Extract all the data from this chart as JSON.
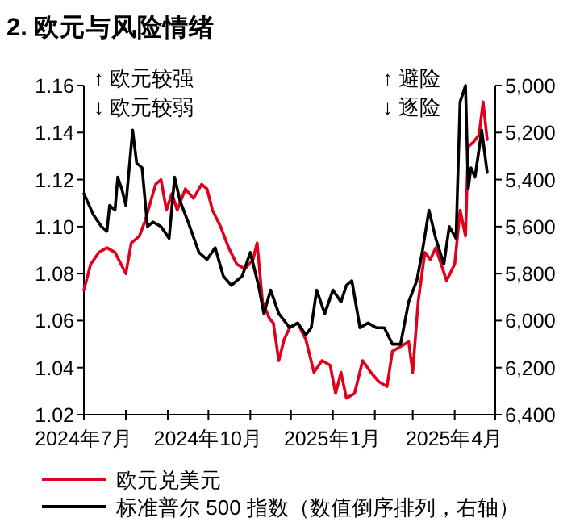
{
  "chart_data": {
    "type": "line",
    "title": "2. 欧元与风险情绪",
    "xlim": [
      "2024-07-01",
      "2025-05-01"
    ],
    "xticks": [
      {
        "value": "2024-07-01",
        "label": "2024年7月"
      },
      {
        "value": "2024-08-01",
        "label": null
      },
      {
        "value": "2024-09-01",
        "label": null
      },
      {
        "value": "2024-10-01",
        "label": "2024年10月"
      },
      {
        "value": "2024-11-01",
        "label": null
      },
      {
        "value": "2024-12-01",
        "label": null
      },
      {
        "value": "2025-01-01",
        "label": "2025年1月"
      },
      {
        "value": "2025-02-01",
        "label": null
      },
      {
        "value": "2025-03-01",
        "label": null
      },
      {
        "value": "2025-04-01",
        "label": "2025年4月"
      },
      {
        "value": "2025-05-01",
        "label": null
      }
    ],
    "ylim": [
      1.02,
      1.16
    ],
    "yticks": [
      {
        "value": 1.02,
        "label": "1.02"
      },
      {
        "value": 1.04,
        "label": "1.04"
      },
      {
        "value": 1.06,
        "label": "1.06"
      },
      {
        "value": 1.08,
        "label": "1.08"
      },
      {
        "value": 1.1,
        "label": "1.10"
      },
      {
        "value": 1.12,
        "label": "1.12"
      },
      {
        "value": 1.14,
        "label": "1.14"
      },
      {
        "value": 1.16,
        "label": "1.16"
      }
    ],
    "y2lim": [
      6400,
      5000
    ],
    "y2ticks": [
      {
        "value": 5000,
        "label": "5,000"
      },
      {
        "value": 5200,
        "label": "5,200"
      },
      {
        "value": 5400,
        "label": "5,400"
      },
      {
        "value": 5600,
        "label": "5,600"
      },
      {
        "value": 5800,
        "label": "5,800"
      },
      {
        "value": 6000,
        "label": "6,000"
      },
      {
        "value": 6200,
        "label": "6,200"
      },
      {
        "value": 6400,
        "label": "6,400"
      }
    ],
    "legend": "bottom",
    "annotations": [
      "↑ 欧元较强",
      "↓ 欧元较弱",
      "↑ 避险",
      "↓ 逐险"
    ],
    "series": [
      {
        "name": "欧元兑美元",
        "color": "#e0001b",
        "x": [
          "2024-07-01",
          "2024-07-06",
          "2024-07-12",
          "2024-07-18",
          "2024-07-24",
          "2024-08-01",
          "2024-08-05",
          "2024-08-11",
          "2024-08-15",
          "2024-08-23",
          "2024-08-27",
          "2024-08-31",
          "2024-09-04",
          "2024-09-08",
          "2024-09-14",
          "2024-09-20",
          "2024-09-26",
          "2024-09-30",
          "2024-10-04",
          "2024-10-10",
          "2024-10-16",
          "2024-10-22",
          "2024-10-28",
          "2024-11-03",
          "2024-11-06",
          "2024-11-10",
          "2024-11-15",
          "2024-11-18",
          "2024-11-22",
          "2024-11-26",
          "2024-11-30",
          "2024-12-06",
          "2024-12-12",
          "2024-12-18",
          "2024-12-24",
          "2024-12-30",
          "2025-01-03",
          "2025-01-07",
          "2025-01-11",
          "2025-01-17",
          "2025-01-23",
          "2025-01-29",
          "2025-02-04",
          "2025-02-10",
          "2025-02-14",
          "2025-02-20",
          "2025-02-26",
          "2025-03-01",
          "2025-03-05",
          "2025-03-10",
          "2025-03-14",
          "2025-03-18",
          "2025-03-22",
          "2025-03-26",
          "2025-04-01",
          "2025-04-05",
          "2025-04-09",
          "2025-04-11",
          "2025-04-15",
          "2025-04-19",
          "2025-04-22",
          "2025-04-25"
        ],
        "values": [
          1.073,
          1.084,
          1.089,
          1.091,
          1.089,
          1.08,
          1.093,
          1.096,
          1.102,
          1.118,
          1.12,
          1.107,
          1.114,
          1.107,
          1.116,
          1.112,
          1.118,
          1.116,
          1.107,
          1.1,
          1.091,
          1.084,
          1.082,
          1.086,
          1.093,
          1.068,
          1.061,
          1.059,
          1.043,
          1.052,
          1.057,
          1.059,
          1.052,
          1.038,
          1.043,
          1.041,
          1.029,
          1.038,
          1.027,
          1.029,
          1.043,
          1.038,
          1.034,
          1.032,
          1.047,
          1.049,
          1.051,
          1.038,
          1.068,
          1.089,
          1.086,
          1.091,
          1.084,
          1.077,
          1.084,
          1.107,
          1.096,
          1.134,
          1.136,
          1.139,
          1.153,
          1.137
        ]
      },
      {
        "name": "标准普尔 500 指数（数值倒序排列，右轴）",
        "color": "#000000",
        "axis": "y2",
        "x": [
          "2024-07-01",
          "2024-07-08",
          "2024-07-14",
          "2024-07-18",
          "2024-07-20",
          "2024-07-24",
          "2024-07-26",
          "2024-07-29",
          "2024-08-01",
          "2024-08-06",
          "2024-08-09",
          "2024-08-13",
          "2024-08-17",
          "2024-08-21",
          "2024-08-27",
          "2024-09-02",
          "2024-09-06",
          "2024-09-10",
          "2024-09-16",
          "2024-09-24",
          "2024-09-30",
          "2024-10-06",
          "2024-10-12",
          "2024-10-18",
          "2024-10-26",
          "2024-11-01",
          "2024-11-07",
          "2024-11-11",
          "2024-11-16",
          "2024-11-22",
          "2024-11-30",
          "2024-12-06",
          "2024-12-12",
          "2024-12-16",
          "2024-12-20",
          "2024-12-26",
          "2025-01-01",
          "2025-01-07",
          "2025-01-11",
          "2025-01-15",
          "2025-01-21",
          "2025-01-27",
          "2025-02-02",
          "2025-02-08",
          "2025-02-14",
          "2025-02-20",
          "2025-02-26",
          "2025-03-04",
          "2025-03-08",
          "2025-03-13",
          "2025-03-18",
          "2025-03-24",
          "2025-03-28",
          "2025-04-02",
          "2025-04-05",
          "2025-04-09",
          "2025-04-11",
          "2025-04-13",
          "2025-04-16",
          "2025-04-21",
          "2025-04-25"
        ],
        "values": [
          5460,
          5550,
          5600,
          5620,
          5510,
          5530,
          5390,
          5440,
          5510,
          5190,
          5330,
          5350,
          5600,
          5580,
          5600,
          5650,
          5390,
          5490,
          5580,
          5710,
          5740,
          5690,
          5810,
          5850,
          5810,
          5710,
          5850,
          5970,
          5870,
          5970,
          6030,
          6010,
          6060,
          6030,
          5870,
          5970,
          5870,
          5920,
          5850,
          5830,
          6030,
          6010,
          6030,
          6030,
          6100,
          6100,
          5920,
          5830,
          5710,
          5530,
          5650,
          5760,
          5600,
          5650,
          5070,
          5000,
          5440,
          5350,
          5390,
          5190,
          5370
        ]
      }
    ]
  }
}
